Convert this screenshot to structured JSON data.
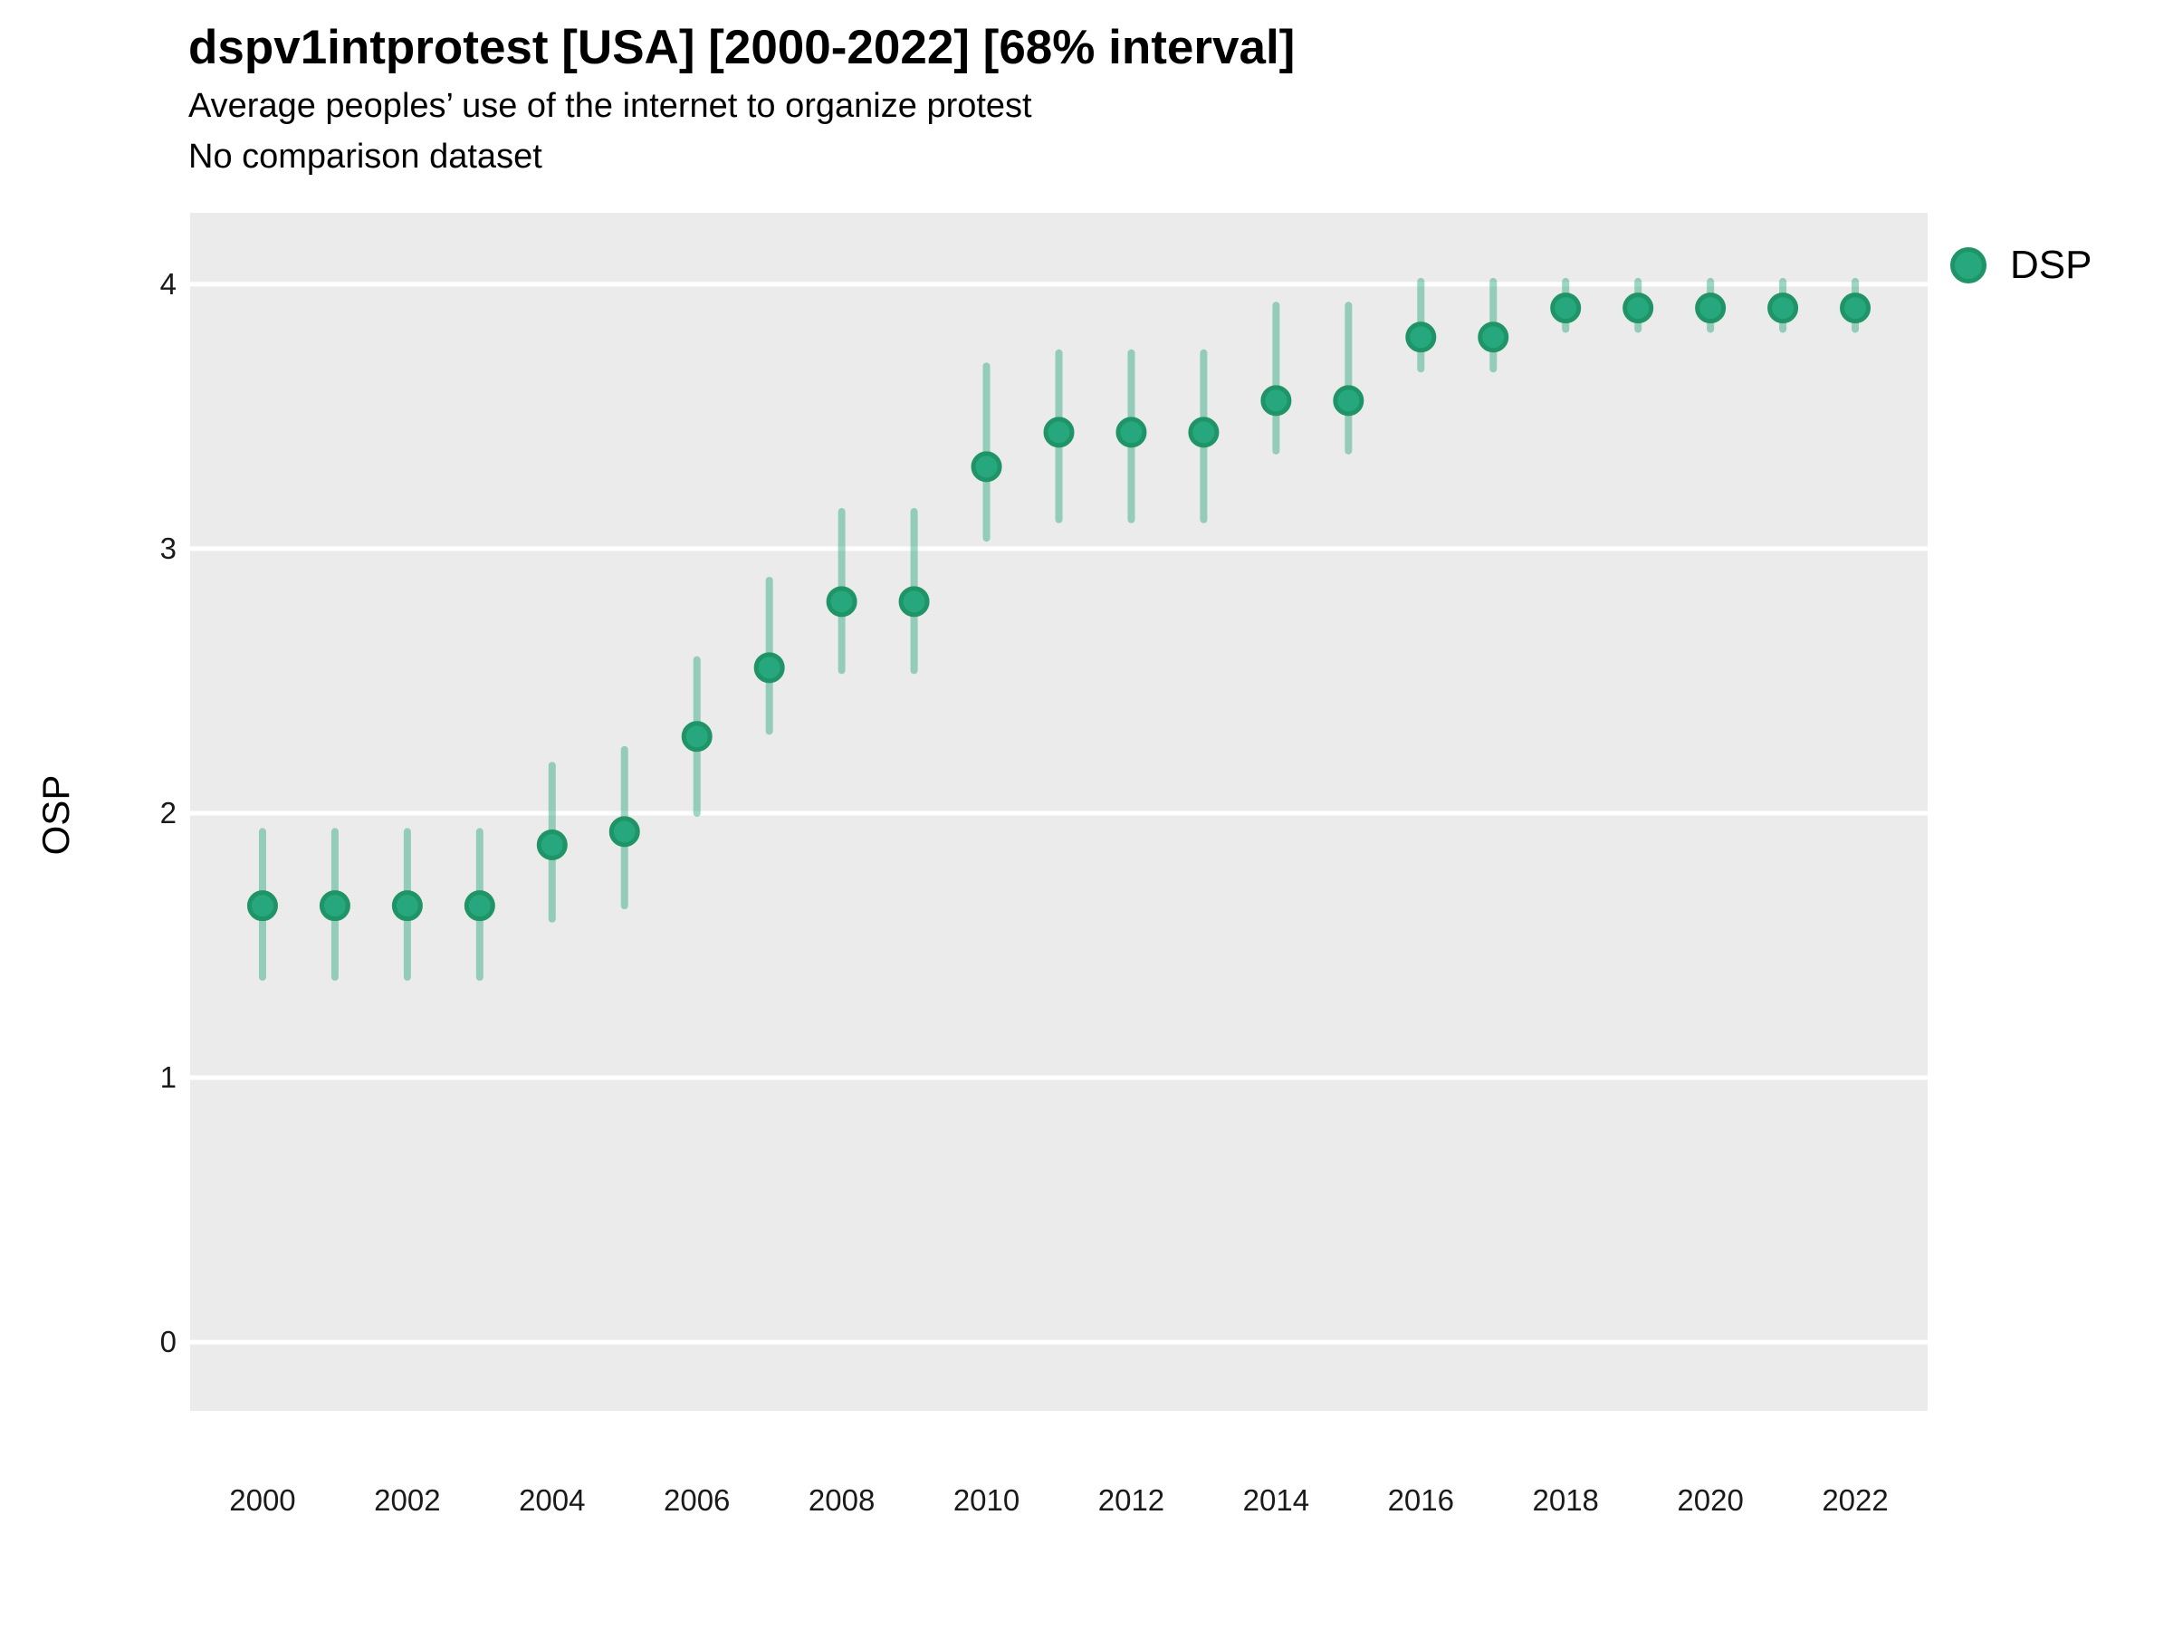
{
  "header": {
    "title": "dspv1intprotest [USA] [2000-2022] [68% interval]",
    "subtitle": "Average peoples’ use of the internet to organize protest",
    "note": "No comparison dataset"
  },
  "legend": {
    "items": [
      {
        "label": "DSP",
        "color": "#27a77d",
        "ring": "#1e9467"
      }
    ]
  },
  "colors": {
    "panel_bg": "#ebebeb",
    "grid": "#ffffff",
    "point_fill": "#27a77d",
    "point_stroke": "#1e9467",
    "interval": "rgba(39,167,125,0.45)",
    "text": "#1a1a1a"
  },
  "chart_data": {
    "type": "pointrange",
    "title": "dspv1intprotest [USA] [2000-2022] [68% interval]",
    "subtitle": "Average peoples’ use of the internet to organize protest",
    "note": "No comparison dataset",
    "interval_level": "68%",
    "xlabel": "",
    "ylabel": "OSP",
    "x": [
      2000,
      2001,
      2002,
      2003,
      2004,
      2005,
      2006,
      2007,
      2008,
      2009,
      2010,
      2011,
      2012,
      2013,
      2014,
      2015,
      2016,
      2017,
      2018,
      2019,
      2020,
      2021,
      2022
    ],
    "series": [
      {
        "name": "DSP",
        "values": [
          1.65,
          1.65,
          1.65,
          1.65,
          1.88,
          1.93,
          2.29,
          2.55,
          2.8,
          2.8,
          3.31,
          3.44,
          3.44,
          3.44,
          3.56,
          3.56,
          3.8,
          3.8,
          3.91,
          3.91,
          3.91,
          3.91,
          3.91
        ],
        "lower": [
          1.38,
          1.38,
          1.38,
          1.38,
          1.6,
          1.65,
          2.0,
          2.31,
          2.54,
          2.54,
          3.04,
          3.11,
          3.11,
          3.11,
          3.37,
          3.37,
          3.68,
          3.68,
          3.83,
          3.83,
          3.83,
          3.83,
          3.83
        ],
        "upper": [
          1.93,
          1.93,
          1.93,
          1.93,
          2.18,
          2.24,
          2.58,
          2.88,
          3.14,
          3.14,
          3.69,
          3.74,
          3.74,
          3.74,
          3.92,
          3.92,
          4.01,
          4.01,
          4.01,
          4.01,
          4.01,
          4.01,
          4.01
        ]
      }
    ],
    "x_ticks": [
      2000,
      2002,
      2004,
      2006,
      2008,
      2010,
      2012,
      2014,
      2016,
      2018,
      2020,
      2022
    ],
    "y_ticks": [
      0,
      1,
      2,
      3,
      4
    ],
    "xlim": [
      1999,
      2023
    ],
    "ylim": [
      -0.26,
      4.27
    ],
    "grid": "major-y-only",
    "legend_position": "right"
  }
}
